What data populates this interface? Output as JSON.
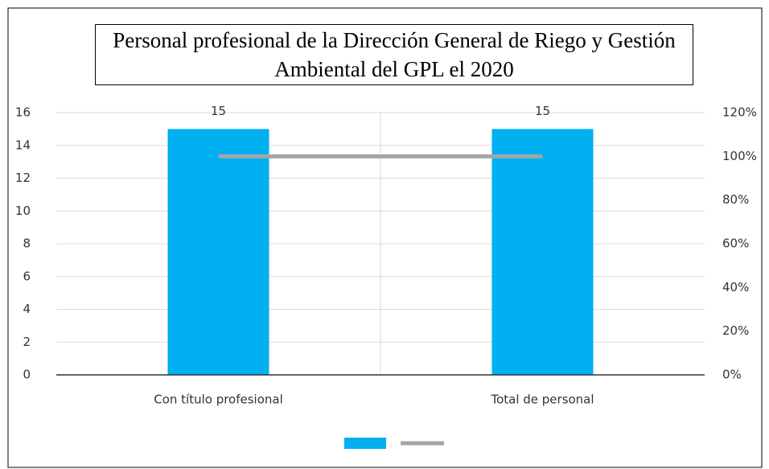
{
  "chart_data": {
    "type": "bar",
    "title": "Personal profesional de la Dirección General de Riego y Gestión Ambiental  del GPL el 2020",
    "categories": [
      "Con título profesional",
      "Total de personal"
    ],
    "series": [
      {
        "type": "bar",
        "color": "#00b0f0",
        "values": [
          15,
          15
        ],
        "value_labels": [
          "15",
          "15"
        ]
      },
      {
        "type": "line",
        "axis": "y2",
        "color": "#a5a5a5",
        "values": [
          100,
          100
        ]
      }
    ],
    "ylim": [
      0,
      16
    ],
    "yticks": [
      0,
      2,
      4,
      6,
      8,
      10,
      12,
      14,
      16
    ],
    "y2lim": [
      0,
      120
    ],
    "y2ticks": [
      {
        "value": 0,
        "label": "0%"
      },
      {
        "value": 20,
        "label": "20%"
      },
      {
        "value": 40,
        "label": "40%"
      },
      {
        "value": 60,
        "label": "60%"
      },
      {
        "value": 80,
        "label": "80%"
      },
      {
        "value": 100,
        "label": "100%"
      },
      {
        "value": 120,
        "label": "120%"
      }
    ],
    "grid": true
  }
}
